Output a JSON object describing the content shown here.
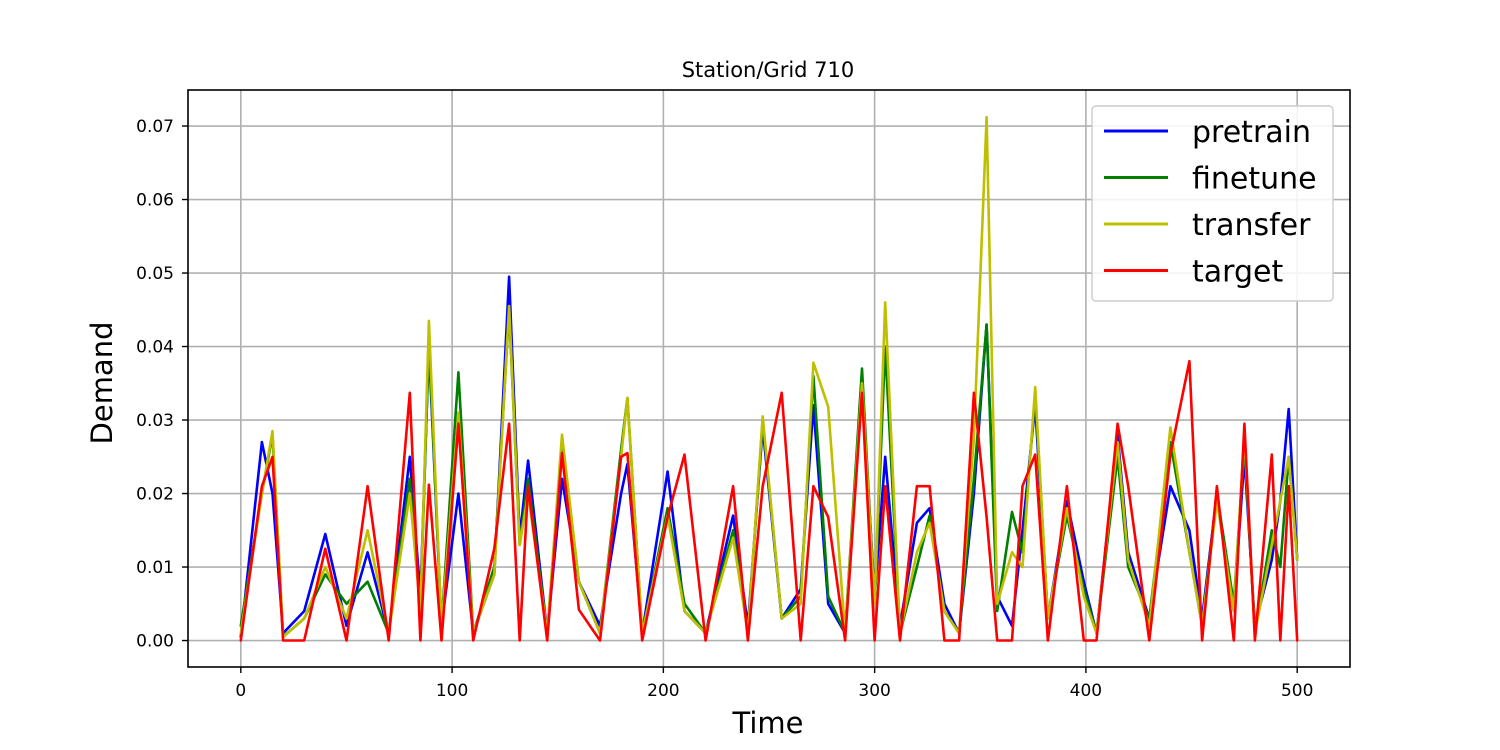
{
  "chart_data": {
    "type": "line",
    "title": "Station/Grid 710",
    "xlabel": "Time",
    "ylabel": "Demand",
    "xlim": [
      -25,
      525
    ],
    "ylim": [
      -0.0036,
      0.0749
    ],
    "xticks": [
      0,
      100,
      200,
      300,
      400,
      500
    ],
    "xtick_labels": [
      "0",
      "100",
      "200",
      "300",
      "400",
      "500"
    ],
    "yticks": [
      0.0,
      0.01,
      0.02,
      0.03,
      0.04,
      0.05,
      0.06,
      0.07
    ],
    "ytick_labels": [
      "0.00",
      "0.01",
      "0.02",
      "0.03",
      "0.04",
      "0.05",
      "0.06",
      "0.07"
    ],
    "grid": true,
    "legend_position": "top-right",
    "x": [
      0,
      10,
      15,
      20,
      30,
      40,
      50,
      60,
      70,
      80,
      85,
      89,
      95,
      103,
      110,
      120,
      127,
      132,
      136,
      145,
      152,
      160,
      170,
      180,
      183,
      190,
      202,
      210,
      220,
      233,
      240,
      247,
      256,
      265,
      271,
      278,
      286,
      294,
      300,
      305,
      312,
      320,
      326,
      333,
      340,
      347,
      353,
      358,
      365,
      370,
      376,
      382,
      391,
      399,
      405,
      415,
      420,
      430,
      440,
      449,
      455,
      462,
      470,
      475,
      480,
      488,
      492,
      496,
      500
    ],
    "series": [
      {
        "name": "pretrain",
        "color": "#0000ff",
        "values": [
          0.0005,
          0.027,
          0.02,
          0.001,
          0.004,
          0.0145,
          0.002,
          0.012,
          0.001,
          0.025,
          0.006,
          0.04,
          0.002,
          0.02,
          0.001,
          0.009,
          0.0495,
          0.014,
          0.0245,
          0.001,
          0.022,
          0.008,
          0.002,
          0.02,
          0.024,
          0.001,
          0.023,
          0.004,
          0.001,
          0.017,
          0.002,
          0.029,
          0.003,
          0.007,
          0.032,
          0.005,
          0.001,
          0.035,
          0.006,
          0.025,
          0.002,
          0.016,
          0.018,
          0.005,
          0.001,
          0.02,
          0.043,
          0.006,
          0.002,
          0.015,
          0.032,
          0.003,
          0.019,
          0.008,
          0.001,
          0.028,
          0.012,
          0.003,
          0.021,
          0.015,
          0.003,
          0.02,
          0.004,
          0.025,
          0.002,
          0.011,
          0.019,
          0.0315,
          0.011
        ]
      },
      {
        "name": "finetune",
        "color": "#008000",
        "values": [
          0.002,
          0.02,
          0.028,
          0.0005,
          0.003,
          0.009,
          0.005,
          0.008,
          0.001,
          0.022,
          0.004,
          0.041,
          0.002,
          0.0365,
          0.001,
          0.01,
          0.045,
          0.013,
          0.022,
          0.001,
          0.027,
          0.008,
          0.001,
          0.026,
          0.033,
          0.001,
          0.018,
          0.005,
          0.001,
          0.015,
          0.001,
          0.03,
          0.003,
          0.006,
          0.036,
          0.006,
          0.001,
          0.037,
          0.005,
          0.04,
          0.001,
          0.01,
          0.017,
          0.004,
          0.001,
          0.022,
          0.043,
          0.004,
          0.0175,
          0.012,
          0.0335,
          0.003,
          0.017,
          0.007,
          0.001,
          0.025,
          0.01,
          0.003,
          0.027,
          0.012,
          0.002,
          0.02,
          0.005,
          0.027,
          0.001,
          0.015,
          0.01,
          0.025,
          0.011
        ]
      },
      {
        "name": "transfer",
        "color": "#bfbf00",
        "values": [
          0.001,
          0.02,
          0.0285,
          0.0005,
          0.003,
          0.01,
          0.003,
          0.015,
          0.001,
          0.02,
          0.004,
          0.0435,
          0.002,
          0.031,
          0.001,
          0.009,
          0.0455,
          0.013,
          0.02,
          0.001,
          0.028,
          0.008,
          0.001,
          0.025,
          0.033,
          0.001,
          0.017,
          0.004,
          0.001,
          0.014,
          0.001,
          0.0305,
          0.003,
          0.005,
          0.0378,
          0.0318,
          0.001,
          0.035,
          0.005,
          0.046,
          0.001,
          0.012,
          0.016,
          0.004,
          0.001,
          0.0275,
          0.0712,
          0.005,
          0.012,
          0.01,
          0.0345,
          0.003,
          0.018,
          0.006,
          0.001,
          0.027,
          0.011,
          0.002,
          0.029,
          0.012,
          0.002,
          0.019,
          0.004,
          0.028,
          0.001,
          0.013,
          0.019,
          0.025,
          0.011
        ]
      },
      {
        "name": "target",
        "color": "#ff0000",
        "values": [
          0.0,
          0.021,
          0.025,
          0.0,
          0.0,
          0.0125,
          0.0,
          0.021,
          0.0,
          0.0337,
          0.0,
          0.0212,
          0.0,
          0.0295,
          0.0,
          0.0125,
          0.0295,
          0.0,
          0.021,
          0.0,
          0.0255,
          0.0042,
          0.0,
          0.025,
          0.0255,
          0.0,
          0.0168,
          0.0253,
          0.0,
          0.021,
          0.0,
          0.021,
          0.0337,
          0.0,
          0.021,
          0.0168,
          0.0,
          0.0337,
          0.0,
          0.021,
          0.0,
          0.021,
          0.021,
          0.0,
          0.0,
          0.0337,
          0.0168,
          0.0,
          0.0,
          0.021,
          0.0253,
          0.0,
          0.021,
          0.0,
          0.0,
          0.0295,
          0.021,
          0.0,
          0.0253,
          0.038,
          0.0,
          0.021,
          0.0,
          0.0295,
          0.0,
          0.0253,
          0.0,
          0.021,
          0.0
        ]
      }
    ]
  }
}
